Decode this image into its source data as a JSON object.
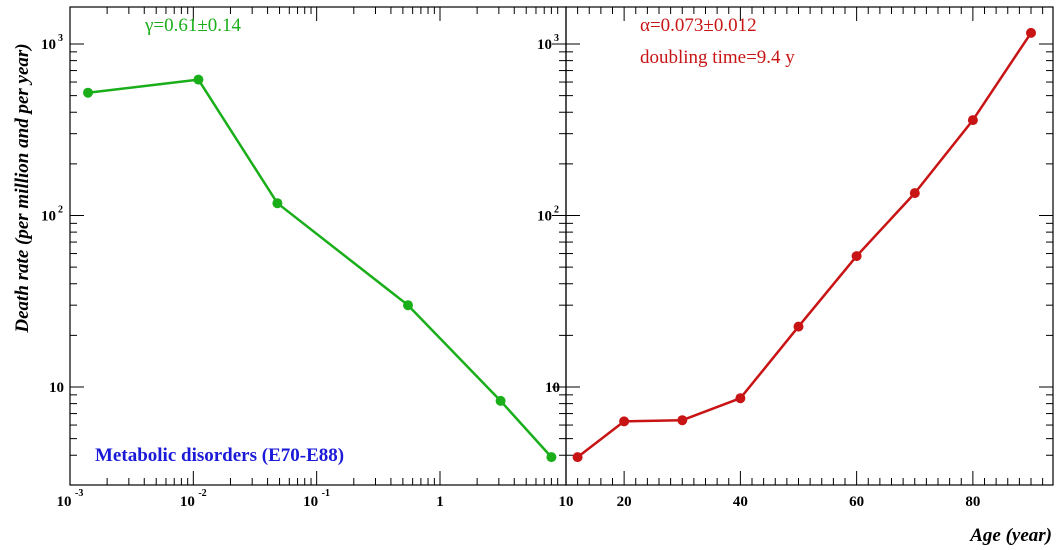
{
  "chart_data": [
    {
      "type": "line",
      "xscale": "log",
      "yscale": "log",
      "xlim": [
        0.00075,
        9.0
      ],
      "ylim": [
        4.0,
        1500
      ],
      "x": [
        0.0014,
        0.011,
        0.048,
        0.55,
        3.1,
        8.0
      ],
      "series": [
        {
          "values": [
            520,
            620,
            118,
            30,
            8.3,
            3.9
          ],
          "color": "#1aae1a"
        }
      ],
      "ylabel": "Death rate (per million and per year)",
      "xlabel": "",
      "annotations": [
        "γ=0.61±0.14",
        "Metabolic disorders (E70-E88)"
      ],
      "annotation_colors": [
        "#1aae1a",
        "#1a1ad8"
      ],
      "xticks_major": [
        {
          "value": 0.001,
          "base": "10",
          "exp": "-3"
        },
        {
          "value": 0.01,
          "base": "10",
          "exp": "-2"
        },
        {
          "value": 0.1,
          "base": "10",
          "exp": "-1"
        },
        {
          "value": 1,
          "base": "1",
          "exp": ""
        }
      ],
      "yticks_major": [
        {
          "value": 10,
          "base": "10",
          "exp": ""
        },
        {
          "value": 100,
          "base": "10",
          "exp": "2"
        },
        {
          "value": 1000,
          "base": "10",
          "exp": "3"
        }
      ]
    },
    {
      "type": "line",
      "xscale": "linear",
      "yscale": "log",
      "xlim": [
        10,
        92
      ],
      "ylim": [
        4.0,
        1500
      ],
      "x": [
        12,
        20,
        30,
        40,
        50,
        60,
        70,
        80,
        90
      ],
      "series": [
        {
          "values": [
            3.9,
            6.3,
            6.4,
            8.6,
            22.5,
            58,
            135,
            360,
            1160
          ],
          "color": "#c81414"
        }
      ],
      "xlabel": "Age (year)",
      "ylabel": "",
      "annotations": [
        "α=0.073±0.012",
        "doubling time=9.4 y"
      ],
      "annotation_color": "#c81414",
      "xticks_major": [
        {
          "value": 10,
          "label": "10"
        },
        {
          "value": 20,
          "label": "20"
        },
        {
          "value": 40,
          "label": "40"
        },
        {
          "value": 60,
          "label": "60"
        },
        {
          "value": 80,
          "label": "80"
        }
      ],
      "yticks_major": [
        {
          "value": 10,
          "base": "10",
          "exp": ""
        },
        {
          "value": 100,
          "base": "10",
          "exp": "2"
        },
        {
          "value": 1000,
          "base": "10",
          "exp": "3"
        }
      ]
    }
  ]
}
